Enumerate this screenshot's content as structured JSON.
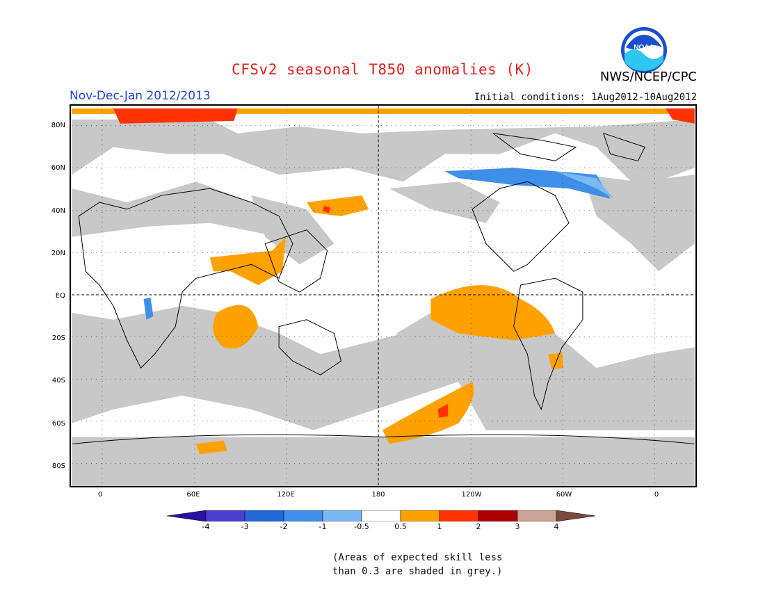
{
  "header": {
    "title": "CFSv2 seasonal T850 anomalies (K)",
    "agency": "NWS/NCEP/CPC",
    "period": "Nov-Dec-Jan 2012/2013",
    "initial_conditions": "Initial conditions: 1Aug2012-10Aug2012",
    "logo_text": "NOAA"
  },
  "map": {
    "lat_labels": [
      "80N",
      "60N",
      "40N",
      "20N",
      "EQ",
      "20S",
      "40S",
      "60S",
      "80S"
    ],
    "lon_labels": [
      "0",
      "60E",
      "120E",
      "180",
      "120W",
      "60W",
      "0"
    ],
    "colors": {
      "land_outline": "#000000",
      "skill_mask_grey": "#c8c8c8",
      "background": "#ffffff"
    }
  },
  "colorbar": {
    "labels": [
      "-4",
      "-3",
      "-2",
      "-1",
      "-0.5",
      "0.5",
      "1",
      "2",
      "3",
      "4"
    ],
    "colors": [
      "#2b0fa6",
      "#4b3fd0",
      "#2266d8",
      "#3d8fe8",
      "#7ab8f5",
      "#ffffff",
      "#ffa200",
      "#ff3300",
      "#aa0000",
      "#c9a394",
      "#7a4a3a"
    ]
  },
  "footnote": {
    "line1": "(Areas of expected skill less",
    "line2": "than 0.3 are shaded in grey.)"
  }
}
